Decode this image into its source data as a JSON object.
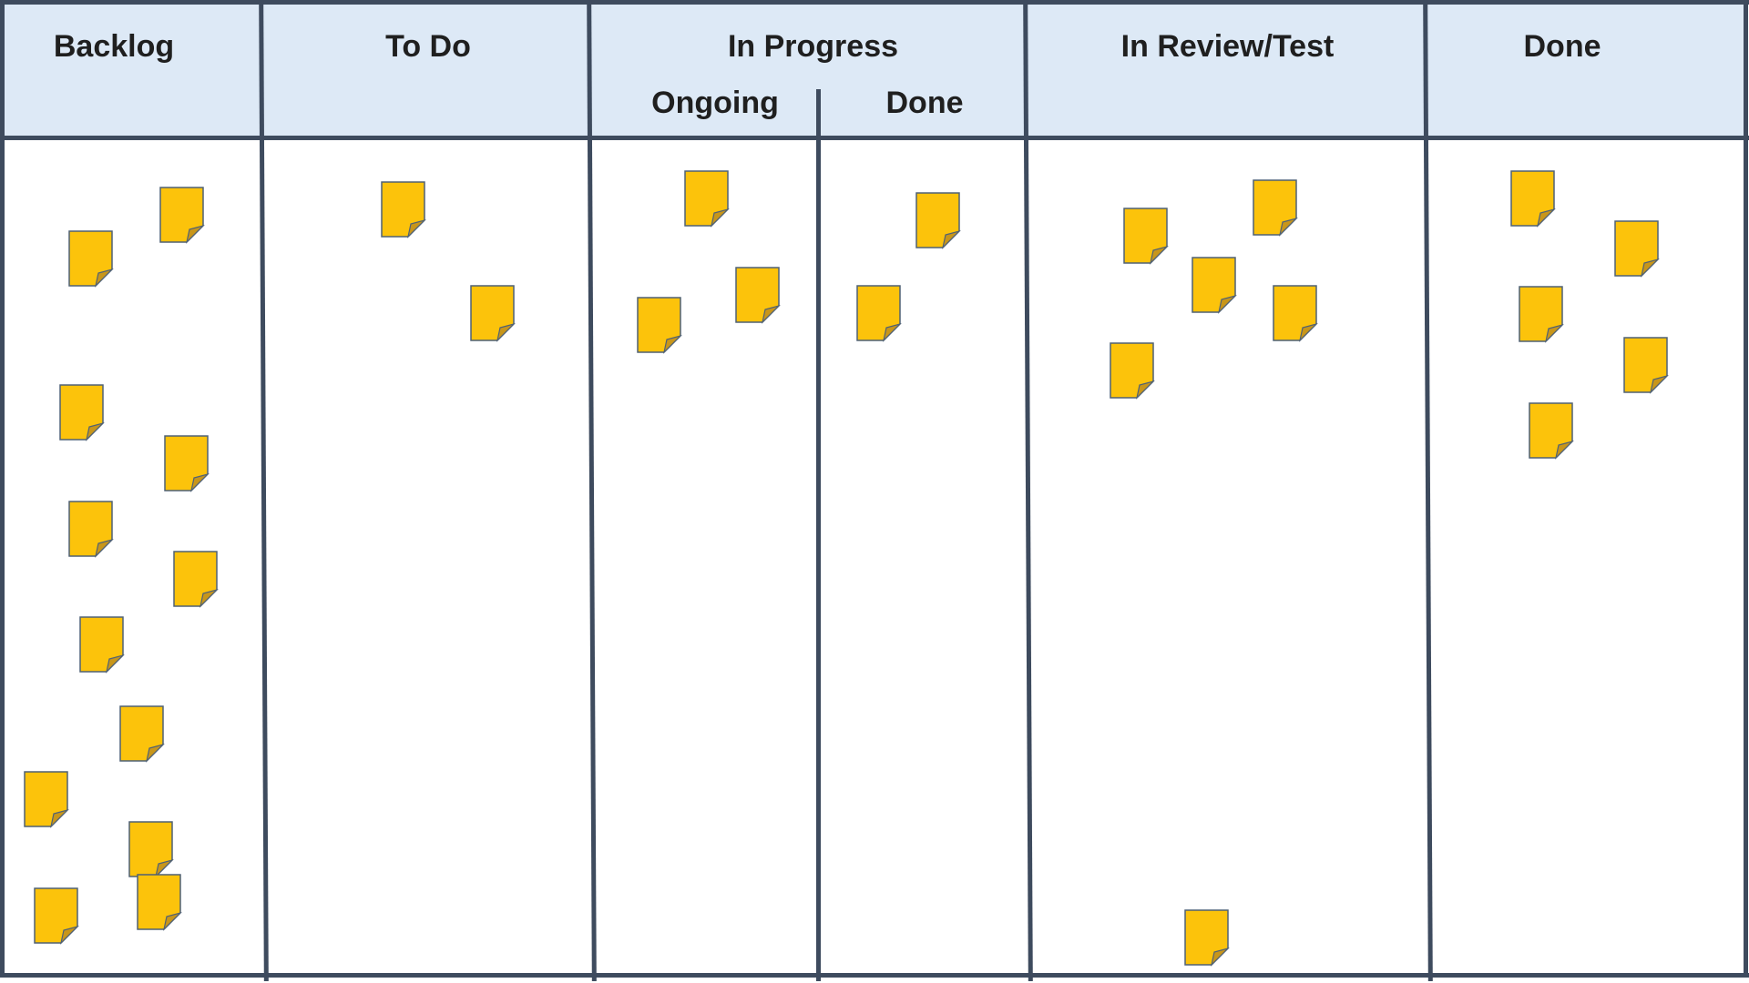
{
  "columns": {
    "backlog": "Backlog",
    "todo": "To Do",
    "in_progress": "In Progress",
    "in_progress_ongoing": "Ongoing",
    "in_progress_done": "Done",
    "review": "In Review/Test",
    "done": "Done"
  },
  "notes": {
    "backlog": 12,
    "todo": 2,
    "in_progress_ongoing": 3,
    "in_progress_done": 2,
    "review": 6,
    "done": 5
  },
  "colors": {
    "header_bg": "#dde9f6",
    "frame": "#3e4b5e",
    "note_fill": "#fcc30b",
    "note_fold": "#c8961a",
    "note_border": "#4f6175"
  }
}
